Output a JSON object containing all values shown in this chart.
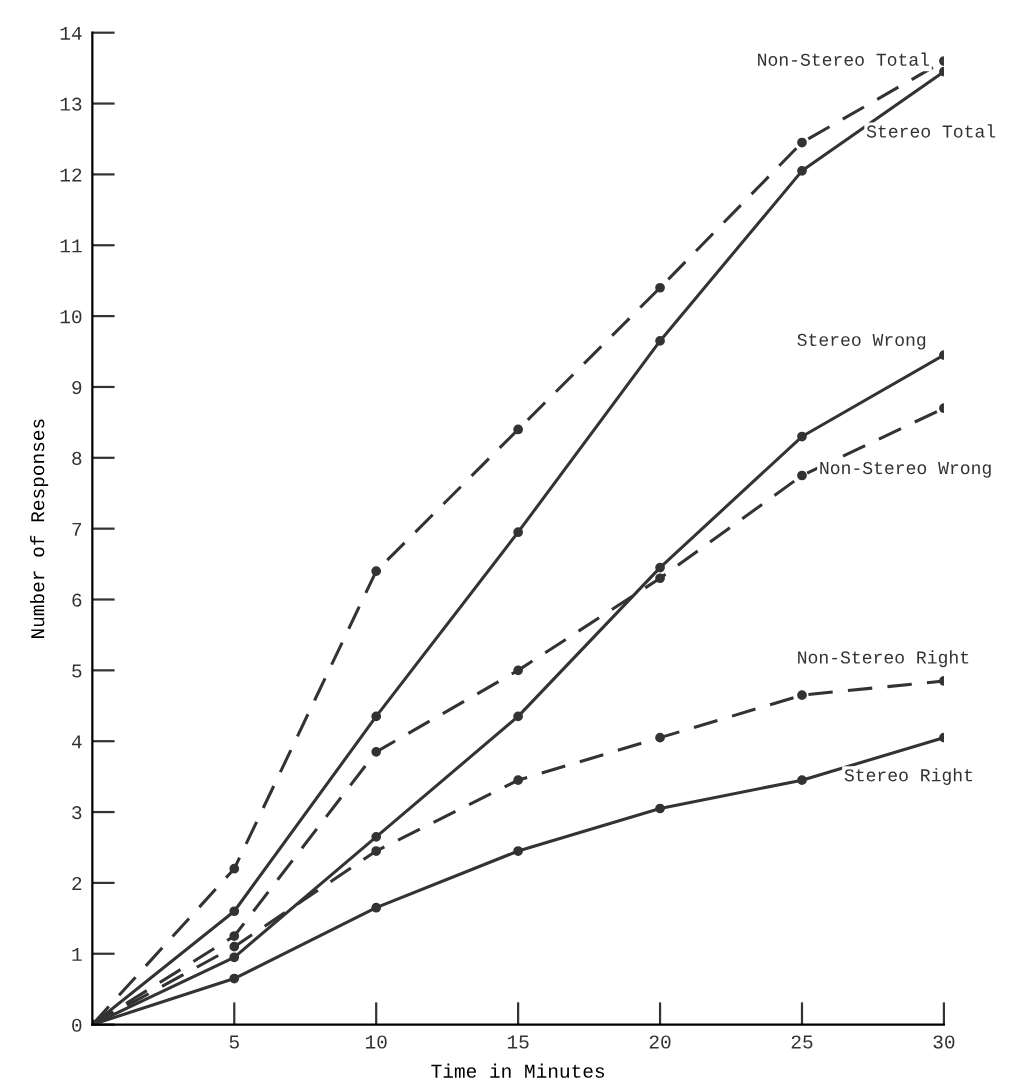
{
  "chart_data": {
    "type": "line",
    "xlabel": "Time in Minutes",
    "ylabel": "Number of Responses",
    "x": [
      0,
      5,
      10,
      15,
      20,
      25,
      30
    ],
    "xlim": [
      0,
      30
    ],
    "xticks": [
      5,
      10,
      15,
      20,
      25,
      30
    ],
    "ylim": [
      0,
      14
    ],
    "yticks": [
      0,
      1,
      2,
      3,
      4,
      5,
      6,
      7,
      8,
      9,
      10,
      11,
      12,
      13,
      14
    ],
    "grid": false,
    "legend": false,
    "marker": "circle",
    "series": [
      {
        "name": "Non-Stereo Total",
        "color": "#333333",
        "line_style": "dashed",
        "values": [
          0,
          2.2,
          6.4,
          8.4,
          10.4,
          12.45,
          13.6
        ]
      },
      {
        "name": "Stereo Total",
        "color": "#333333",
        "line_style": "solid",
        "values": [
          0,
          1.6,
          4.35,
          6.95,
          9.65,
          12.05,
          13.45
        ]
      },
      {
        "name": "Stereo Wrong",
        "color": "#333333",
        "line_style": "solid",
        "values": [
          0,
          0.95,
          2.65,
          4.35,
          6.45,
          8.3,
          9.45
        ]
      },
      {
        "name": "Non-Stereo Wrong",
        "color": "#333333",
        "line_style": "dashed",
        "values": [
          0,
          1.25,
          3.85,
          5.0,
          6.3,
          7.75,
          8.7
        ]
      },
      {
        "name": "Non-Stereo Right",
        "color": "#333333",
        "line_style": "dashed",
        "values": [
          0,
          1.1,
          2.45,
          3.45,
          4.05,
          4.65,
          4.85
        ]
      },
      {
        "name": "Stereo Right",
        "color": "#333333",
        "line_style": "solid",
        "values": [
          0,
          0.65,
          1.65,
          2.45,
          3.05,
          3.45,
          4.05
        ]
      }
    ]
  }
}
